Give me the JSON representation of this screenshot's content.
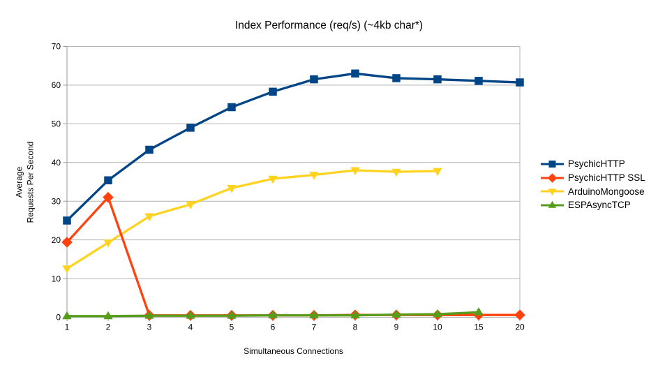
{
  "chart_data": {
    "type": "line",
    "title": "Index Performance (req/s) (~4kb char*)",
    "xlabel": "Simultaneous Connections",
    "ylabel": "Average\nRequests Per Second",
    "categories": [
      "1",
      "2",
      "3",
      "4",
      "5",
      "6",
      "7",
      "8",
      "9",
      "10",
      "15",
      "20"
    ],
    "ylim": [
      0,
      70
    ],
    "ytick_step": 10,
    "grid": true,
    "legend_position": "right",
    "background_color": "#ffffff",
    "grid_color": "#b3b3b3",
    "axis_color": "#999999",
    "text_color": "#000000",
    "series": [
      {
        "name": "PsychicHTTP",
        "color": "#004586",
        "marker": "square",
        "values": [
          25.0,
          35.4,
          43.3,
          49.0,
          54.3,
          58.3,
          61.5,
          63.0,
          61.8,
          61.5,
          61.1,
          60.7
        ]
      },
      {
        "name": "PsychicHTTP SSL",
        "color": "#FF420E",
        "marker": "diamond",
        "values": [
          19.4,
          31.0,
          0.5,
          0.5,
          0.5,
          0.5,
          0.5,
          0.6,
          0.6,
          0.6,
          0.6,
          0.6
        ]
      },
      {
        "name": "ArduinoMongoose",
        "color": "#FFD320",
        "marker": "triangle-down",
        "values": [
          12.6,
          19.3,
          26.1,
          29.2,
          33.4,
          35.8,
          36.8,
          38.0,
          37.6,
          37.8,
          null,
          null
        ]
      },
      {
        "name": "ESPAsyncTCP",
        "color": "#579D1C",
        "marker": "triangle-up",
        "values": [
          0.3,
          0.3,
          0.4,
          0.4,
          0.4,
          0.5,
          0.5,
          0.5,
          0.7,
          0.8,
          1.3,
          null
        ]
      }
    ],
    "draw_order": [
      2,
      1,
      3,
      0
    ]
  }
}
